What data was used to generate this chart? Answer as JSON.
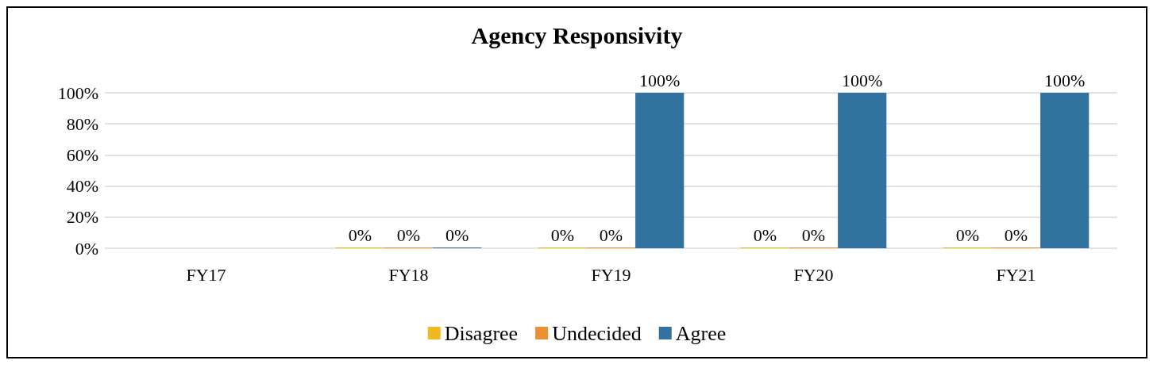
{
  "chart_data": {
    "type": "bar",
    "title": "Agency Responsivity",
    "categories": [
      "FY17",
      "FY18",
      "FY19",
      "FY20",
      "FY21"
    ],
    "series": [
      {
        "name": "Disagree",
        "color": "#f0b823",
        "values": [
          null,
          0,
          0,
          0,
          0
        ],
        "value_labels": [
          null,
          "0%",
          "0%",
          "0%",
          "0%"
        ]
      },
      {
        "name": "Undecided",
        "color": "#ea8f32",
        "values": [
          null,
          0,
          0,
          0,
          0
        ],
        "value_labels": [
          null,
          "0%",
          "0%",
          "0%",
          "0%"
        ]
      },
      {
        "name": "Agree",
        "color": "#31739e",
        "values": [
          null,
          0,
          100,
          100,
          100
        ],
        "value_labels": [
          null,
          "0%",
          "100%",
          "100%",
          "100%"
        ]
      }
    ],
    "ylim": [
      0,
      100
    ],
    "yticks": [
      {
        "value": 0,
        "label": "0%"
      },
      {
        "value": 20,
        "label": "20%"
      },
      {
        "value": 40,
        "label": "40%"
      },
      {
        "value": 60,
        "label": "60%"
      },
      {
        "value": 80,
        "label": "80%"
      },
      {
        "value": 100,
        "label": "100%"
      }
    ],
    "grid": "y",
    "legend": "bottom"
  }
}
